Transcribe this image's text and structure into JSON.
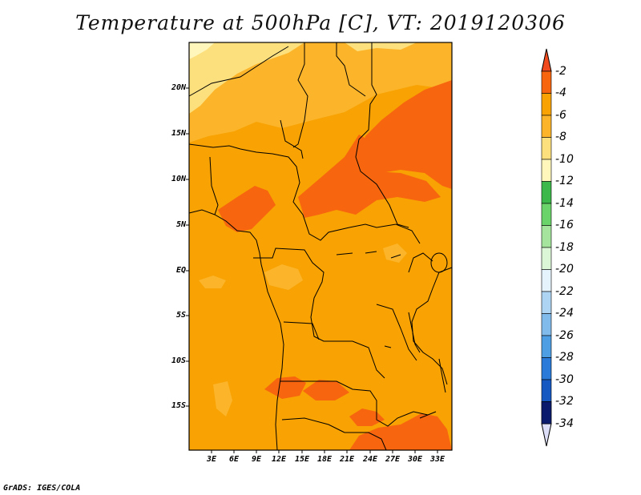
{
  "title": "Temperature at 500hPa [C], VT: 2019120306",
  "credit": "GrADS: IGES/COLA",
  "map": {
    "lat_ticks": [
      "20N",
      "15N",
      "10N",
      "5N",
      "EQ",
      "5S",
      "10S",
      "15S"
    ],
    "lon_ticks": [
      "3E",
      "6E",
      "9E",
      "12E",
      "15E",
      "18E",
      "21E",
      "24E",
      "27E",
      "30E",
      "33E"
    ]
  },
  "colorbar": {
    "levels": [
      "-2",
      "-4",
      "-6",
      "-8",
      "-10",
      "-12",
      "-14",
      "-16",
      "-18",
      "-20",
      "-22",
      "-24",
      "-26",
      "-28",
      "-30",
      "-32",
      "-34"
    ],
    "colors": {
      "top_arrow": "#f04a1e",
      "c_m2_m4": "#f7650e",
      "c_m4_m6": "#f8a203",
      "c_m6_m8": "#fcb52a",
      "c_m8_m10": "#fde07e",
      "c_m10_m12": "#fef6bb",
      "c_m12_m14": "#3cb84a",
      "c_m14_m16": "#6ad36a",
      "c_m16_m18": "#a4e49c",
      "c_m18_m20": "#dbf6d7",
      "c_m20_m22": "#e4f3fc",
      "c_m22_m24": "#aed4f3",
      "c_m24_m26": "#81bbec",
      "c_m26_m28": "#4e9ee4",
      "c_m28_m30": "#2a7ad9",
      "c_m30_m32": "#1558c2",
      "c_m32_m34": "#0b3a9c",
      "bottom_box": "#0a1b6e",
      "bottom_arrow": "#dcdff7"
    }
  }
}
